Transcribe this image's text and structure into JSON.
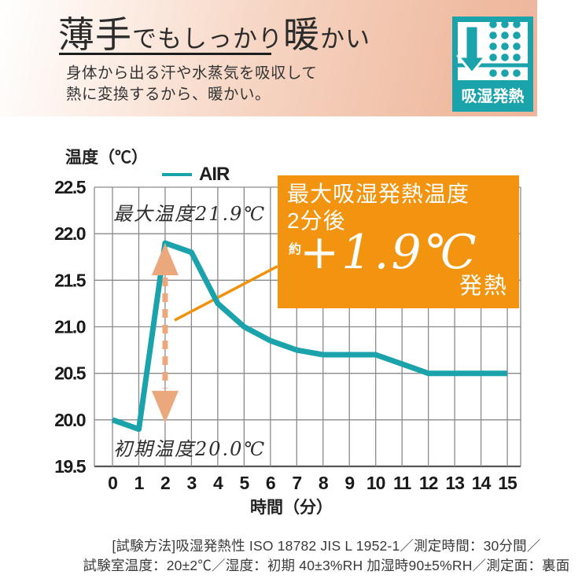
{
  "colors": {
    "teal": "#1ba3ac",
    "orange": "#f2940f",
    "salmon": "#eba87d",
    "leader": "#ef920c",
    "grid": "#8a8a8a",
    "axis": "#555555"
  },
  "header": {
    "title_parts": [
      "薄手",
      "でもしっかり",
      "暖",
      "かい"
    ],
    "subtitle_line1": "身体から出る汗や水蒸気を吸収して",
    "subtitle_line2": "熱に変換するから、暖かい。",
    "badge_label": "吸湿発熱"
  },
  "chart": {
    "y_axis_title": "温度（℃）",
    "x_axis_title": "時間（分）",
    "legend_label": "AIR",
    "annotation_max": "最大温度21.9℃",
    "annotation_initial": "初期温度20.0℃"
  },
  "callout": {
    "line1": "最大吸湿発熱温度",
    "line2": "2分後",
    "approx": "約",
    "value": "+1.9℃",
    "suffix": "発熱"
  },
  "footer": {
    "line1": "[試験方法]吸湿発熱性 ISO 18782 JIS L 1952-1／測定時間：30分間／",
    "line2": "試験室温度：20±2℃／湿度：初期 40±3%RH 加湿時90±5%RH／測定面：裏面"
  },
  "chart_data": {
    "type": "line",
    "xlabel": "時間（分）",
    "ylabel": "温度（℃）",
    "x": [
      0,
      1,
      2,
      3,
      4,
      5,
      6,
      7,
      8,
      9,
      10,
      11,
      12,
      13,
      14,
      15
    ],
    "series": [
      {
        "name": "AIR",
        "color": "#1ba3ac",
        "values": [
          20.0,
          19.9,
          21.9,
          21.8,
          21.25,
          21.0,
          20.85,
          20.75,
          20.7,
          20.7,
          20.7,
          20.6,
          20.5,
          20.5,
          20.5,
          20.5
        ]
      }
    ],
    "ylim": [
      19.5,
      22.5
    ],
    "y_ticks": [
      19.5,
      20.0,
      20.5,
      21.0,
      21.5,
      22.0,
      22.5
    ],
    "grid": true,
    "legend_position": "top",
    "annotations": {
      "delta_arrow": {
        "x": 2,
        "from": 20.0,
        "to": 21.9
      },
      "leader_line": {
        "x1": 2.36,
        "y1": 21.07,
        "x2": 6.27,
        "y2": 21.65
      },
      "max_label": "最大温度21.9℃",
      "initial_label": "初期温度20.0℃"
    }
  }
}
